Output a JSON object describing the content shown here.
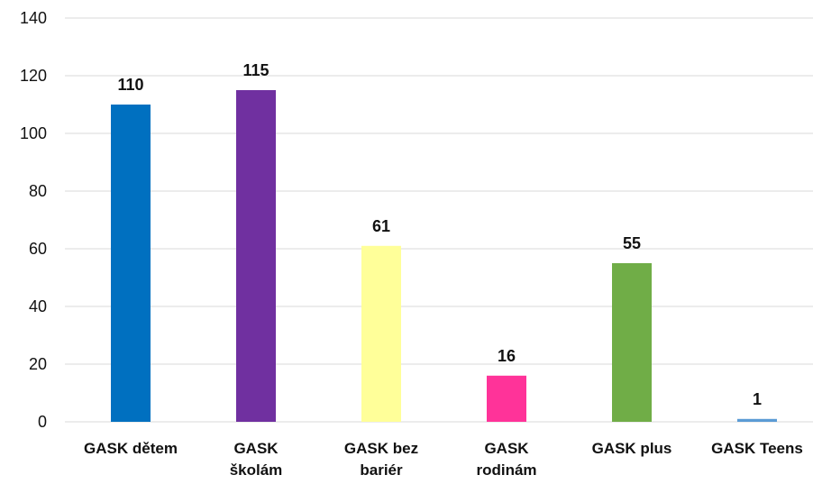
{
  "chart_data": {
    "type": "bar",
    "title": "",
    "xlabel": "",
    "ylabel": "",
    "ylim": [
      0,
      140
    ],
    "yticks": [
      0,
      20,
      40,
      60,
      80,
      100,
      120,
      140
    ],
    "grid": true,
    "legend": "none",
    "categories": [
      [
        "GASK dětem"
      ],
      [
        "GASK",
        "školám"
      ],
      [
        "GASK bez",
        "bariér"
      ],
      [
        "GASK",
        "rodinám"
      ],
      [
        "GASK plus"
      ],
      [
        "GASK Teens"
      ]
    ],
    "values": [
      110,
      115,
      61,
      16,
      55,
      1
    ],
    "data_labels": [
      "110",
      "115",
      "61",
      "16",
      "55",
      "1"
    ],
    "colors": [
      "#0070c0",
      "#7030a0",
      "#ffff99",
      "#ff3399",
      "#70ad47",
      "#5b9bd5"
    ]
  }
}
